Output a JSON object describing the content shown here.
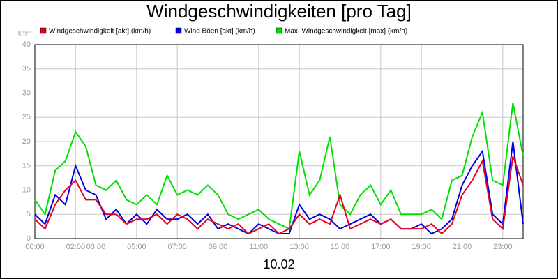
{
  "chart_data": {
    "type": "line",
    "title": "Windgeschwindigkeiten [pro Tag]",
    "ylabel": "km/h",
    "xlabel": "10.02",
    "x": [
      0,
      0.5,
      1,
      1.5,
      2,
      2.5,
      3,
      3.5,
      4,
      4.5,
      5,
      5.5,
      6,
      6.5,
      7,
      7.5,
      8,
      8.5,
      9,
      9.5,
      10,
      10.5,
      11,
      11.5,
      12,
      12.5,
      13,
      13.5,
      14,
      14.5,
      15,
      15.5,
      16,
      16.5,
      17,
      17.5,
      18,
      18.5,
      19,
      19.5,
      20,
      20.5,
      21,
      21.5,
      22,
      22.5,
      23,
      23.5,
      24
    ],
    "xlim": [
      0,
      24
    ],
    "xticks": [
      {
        "value": 0,
        "label": "00:00"
      },
      {
        "value": 2,
        "label": "02:00"
      },
      {
        "value": 3,
        "label": "03:00"
      },
      {
        "value": 5,
        "label": "05:00"
      },
      {
        "value": 7,
        "label": "07:00"
      },
      {
        "value": 9,
        "label": "09:00"
      },
      {
        "value": 11,
        "label": "11:00"
      },
      {
        "value": 13,
        "label": "13:00"
      },
      {
        "value": 15,
        "label": "15:00"
      },
      {
        "value": 17,
        "label": "17:00"
      },
      {
        "value": 19,
        "label": "19:00"
      },
      {
        "value": 21,
        "label": "21:00"
      },
      {
        "value": 23,
        "label": "23:00"
      }
    ],
    "ylim": [
      0,
      40
    ],
    "yticks": [
      0,
      5,
      10,
      15,
      20,
      25,
      30,
      35,
      40
    ],
    "grid": true,
    "series": [
      {
        "name": "Windgeschwindigkeit [akt] (km/h)",
        "color": "#e8001c",
        "values": [
          4,
          2,
          7,
          10,
          12,
          8,
          8,
          5,
          5,
          3,
          4,
          4,
          5,
          3,
          5,
          4,
          2,
          4,
          3,
          2,
          3,
          1,
          2,
          3,
          1,
          2,
          5,
          3,
          4,
          3,
          9,
          2,
          3,
          4,
          3,
          4,
          2,
          2,
          2,
          3,
          1,
          3,
          9,
          12,
          16,
          4,
          2,
          17,
          11
        ]
      },
      {
        "name": "Wind Böen [akt] (km/h)",
        "color": "#0000e0",
        "values": [
          5,
          3,
          9,
          7,
          15,
          10,
          9,
          4,
          6,
          3,
          5,
          3,
          6,
          4,
          4,
          5,
          3,
          5,
          2,
          3,
          2,
          1,
          3,
          2,
          1,
          1,
          7,
          4,
          5,
          4,
          2,
          3,
          4,
          5,
          3,
          4,
          2,
          2,
          3,
          1,
          2,
          4,
          11,
          15,
          18,
          5,
          3,
          20,
          3
        ]
      },
      {
        "name": "Max. Windgeschwindigkeit [max] (km/h)",
        "color": "#00e000",
        "values": [
          8,
          5,
          14,
          16,
          22,
          19,
          11,
          10,
          12,
          8,
          7,
          9,
          7,
          13,
          9,
          10,
          9,
          11,
          9,
          5,
          4,
          5,
          6,
          4,
          3,
          2,
          18,
          9,
          12,
          21,
          7,
          5,
          9,
          11,
          7,
          10,
          5,
          5,
          5,
          6,
          4,
          12,
          13,
          21,
          26,
          12,
          11,
          28,
          17
        ]
      }
    ]
  }
}
